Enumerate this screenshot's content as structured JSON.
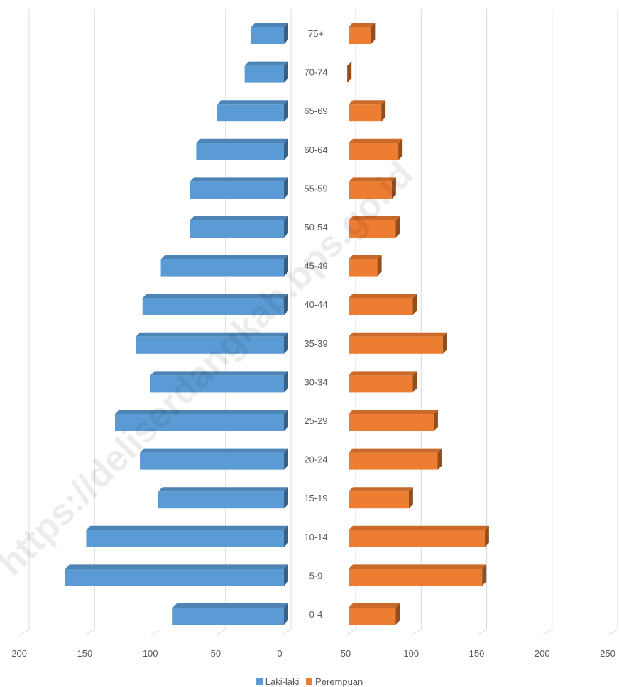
{
  "watermark": "https://deliserdangkab.bps.go.id",
  "chart_data": {
    "type": "bar",
    "orientation": "horizontal",
    "style": "population-pyramid-3d",
    "title": "",
    "categories": [
      "75+",
      "70-74",
      "65-69",
      "60-64",
      "55-59",
      "50-54",
      "45-49",
      "40-44",
      "35-39",
      "30-34",
      "25-29",
      "20-24",
      "15-19",
      "10-14",
      "5-9",
      "0-4"
    ],
    "series": [
      {
        "name": "Laki-laki",
        "color": "#5b9bd5",
        "values": [
          -25,
          -30,
          -51,
          -67,
          -72,
          -72,
          -94,
          -108,
          -113,
          -102,
          -129,
          -110,
          -96,
          -151,
          -167,
          -85
        ]
      },
      {
        "name": "Perempuan",
        "color": "#ed7d31",
        "values": [
          67,
          49,
          75,
          88,
          83,
          86,
          72,
          99,
          122,
          99,
          115,
          118,
          96,
          154,
          152,
          86
        ]
      }
    ],
    "left_axis": {
      "ticks": [
        -200,
        -150,
        -100,
        -50,
        0
      ],
      "range": [
        -200,
        0
      ]
    },
    "right_axis": {
      "ticks": [
        50,
        100,
        150,
        200,
        250
      ],
      "range": [
        50,
        250
      ]
    },
    "grid": true,
    "legend": "bottom-center"
  }
}
